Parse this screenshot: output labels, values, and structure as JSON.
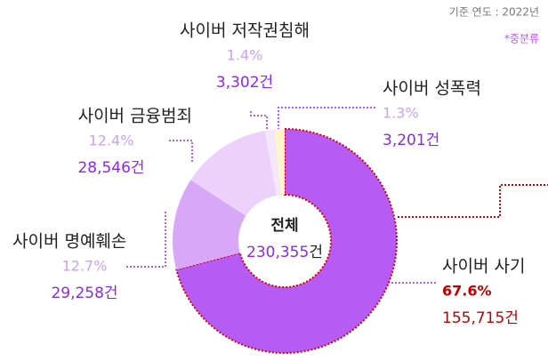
{
  "chart_data": {
    "type": "pie",
    "donut": true,
    "note_year": "기준 연도 : 2022년",
    "note_level": "*중분류",
    "categories": [
      "사이버 사기",
      "사이버 명예훼손",
      "사이버 금융범죄",
      "사이버 저작권침해",
      "사이버 성폭력"
    ],
    "values": [
      67.6,
      12.7,
      12.4,
      1.4,
      1.3
    ],
    "value_labels": [
      "67.6%",
      "12.7%",
      "12.4%",
      "1.4%",
      "1.3%"
    ],
    "counts": [
      155715,
      29258,
      28546,
      3302,
      3201
    ],
    "count_labels": [
      "155,715건",
      "29,258건",
      "28,546건",
      "3,302건",
      "3,201건"
    ],
    "colors": [
      "#b65cf5",
      "#d8a8f8",
      "#ecd2fb",
      "#f4e6fb",
      "#fff5c8"
    ],
    "total_title": "전체",
    "total": 230355,
    "total_label": "230,355",
    "total_unit": "건"
  }
}
